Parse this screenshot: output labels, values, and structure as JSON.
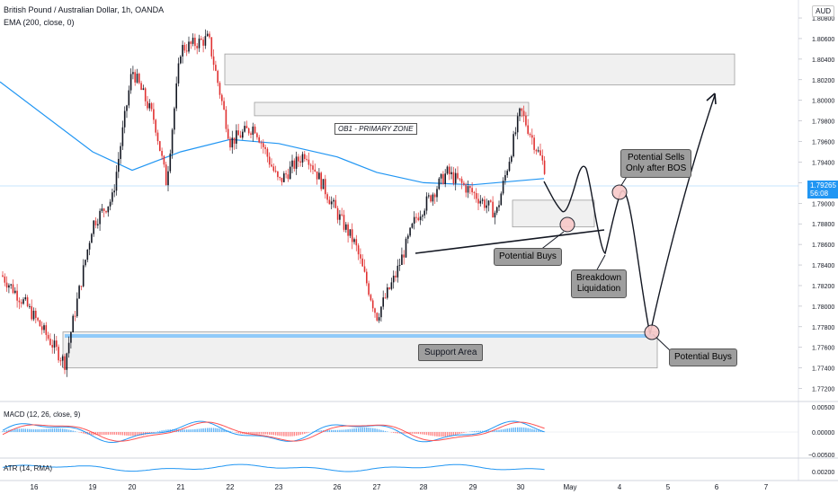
{
  "header": {
    "title": "British Pound / Australian Dollar, 1h, OANDA",
    "indicator": "EMA (200, close, 0)"
  },
  "currency_badge": "AUD",
  "price_tag": {
    "price": "1.79265",
    "countdown": "56:08"
  },
  "panes": {
    "macd_label": "MACD (12, 26, close, 9)",
    "atr_label": "ATR (14, RMA)"
  },
  "annotations": {
    "ob1": "OB1 - PRIMARY ZONE",
    "support": "Support Area",
    "potential_buys_1": "Potential Buys",
    "breakdown": "Breakdown\nLiquidation",
    "potential_sells": "Potential Sells\nOnly after BOS",
    "potential_buys_2": "Potential Buys"
  },
  "colors": {
    "up": "#131722",
    "down": "#e03131",
    "ema": "#2196f3",
    "macd_line": "#2196f3",
    "signal_line": "#ff5252",
    "zone_fill": "#f0f0f0",
    "support_line": "#90caf9"
  },
  "chart_data": {
    "type": "candlestick",
    "title": "British Pound / Australian Dollar, 1h, OANDA",
    "y_ticks": [
      "1.80800",
      "1.80600",
      "1.80400",
      "1.80200",
      "1.80000",
      "1.79800",
      "1.79600",
      "1.79400",
      "1.79200",
      "1.79000",
      "1.78800",
      "1.78600",
      "1.78400",
      "1.78200",
      "1.78000",
      "1.77800",
      "1.77600",
      "1.77400",
      "1.77200"
    ],
    "x_ticks": [
      "16",
      "19",
      "20",
      "21",
      "22",
      "23",
      "26",
      "27",
      "28",
      "29",
      "30",
      "May",
      "4",
      "5",
      "6",
      "7"
    ],
    "ylim": [
      1.7715,
      1.8098
    ],
    "ema_label": "EMA (200, close, 0)",
    "close_path": [
      {
        "x": "16",
        "y": 1.783
      },
      {
        "x": "16.5",
        "y": 1.78
      },
      {
        "x": "19 (early)",
        "y": 1.7745
      },
      {
        "x": "19",
        "y": 1.788
      },
      {
        "x": "19.5",
        "y": 1.7905
      },
      {
        "x": "20",
        "y": 1.803
      },
      {
        "x": "20.5",
        "y": 1.798
      },
      {
        "x": "20.8",
        "y": 1.792
      },
      {
        "x": "21",
        "y": 1.805
      },
      {
        "x": "21.6",
        "y": 1.806
      },
      {
        "x": "22",
        "y": 1.796
      },
      {
        "x": "22.6",
        "y": 1.7975
      },
      {
        "x": "23",
        "y": 1.792
      },
      {
        "x": "23.6",
        "y": 1.795
      },
      {
        "x": "26",
        "y": 1.789
      },
      {
        "x": "26.6",
        "y": 1.786
      },
      {
        "x": "27",
        "y": 1.779
      },
      {
        "x": "27.6",
        "y": 1.783
      },
      {
        "x": "28",
        "y": 1.7885
      },
      {
        "x": "28.5",
        "y": 1.793
      },
      {
        "x": "29",
        "y": 1.791
      },
      {
        "x": "29.6",
        "y": 1.789
      },
      {
        "x": "30",
        "y": 1.799
      },
      {
        "x": "30.6",
        "y": 1.793
      }
    ],
    "ema_path": [
      {
        "x": "16",
        "y": 1.8018
      },
      {
        "x": "19",
        "y": 1.795
      },
      {
        "x": "20",
        "y": 1.7932
      },
      {
        "x": "21",
        "y": 1.795
      },
      {
        "x": "22",
        "y": 1.7962
      },
      {
        "x": "23",
        "y": 1.7958
      },
      {
        "x": "26",
        "y": 1.7945
      },
      {
        "x": "27",
        "y": 1.793
      },
      {
        "x": "28",
        "y": 1.792
      },
      {
        "x": "29",
        "y": 1.7918
      },
      {
        "x": "30",
        "y": 1.7924
      }
    ],
    "zones": [
      {
        "name": "upper-zone",
        "from": 1.8015,
        "to": 1.8045
      },
      {
        "name": "ob1-zone",
        "from": 1.7985,
        "to": 1.7998
      },
      {
        "name": "support-area",
        "from": 1.774,
        "to": 1.7775
      },
      {
        "name": "small-zone",
        "from": 1.7877,
        "to": 1.7903
      }
    ]
  }
}
